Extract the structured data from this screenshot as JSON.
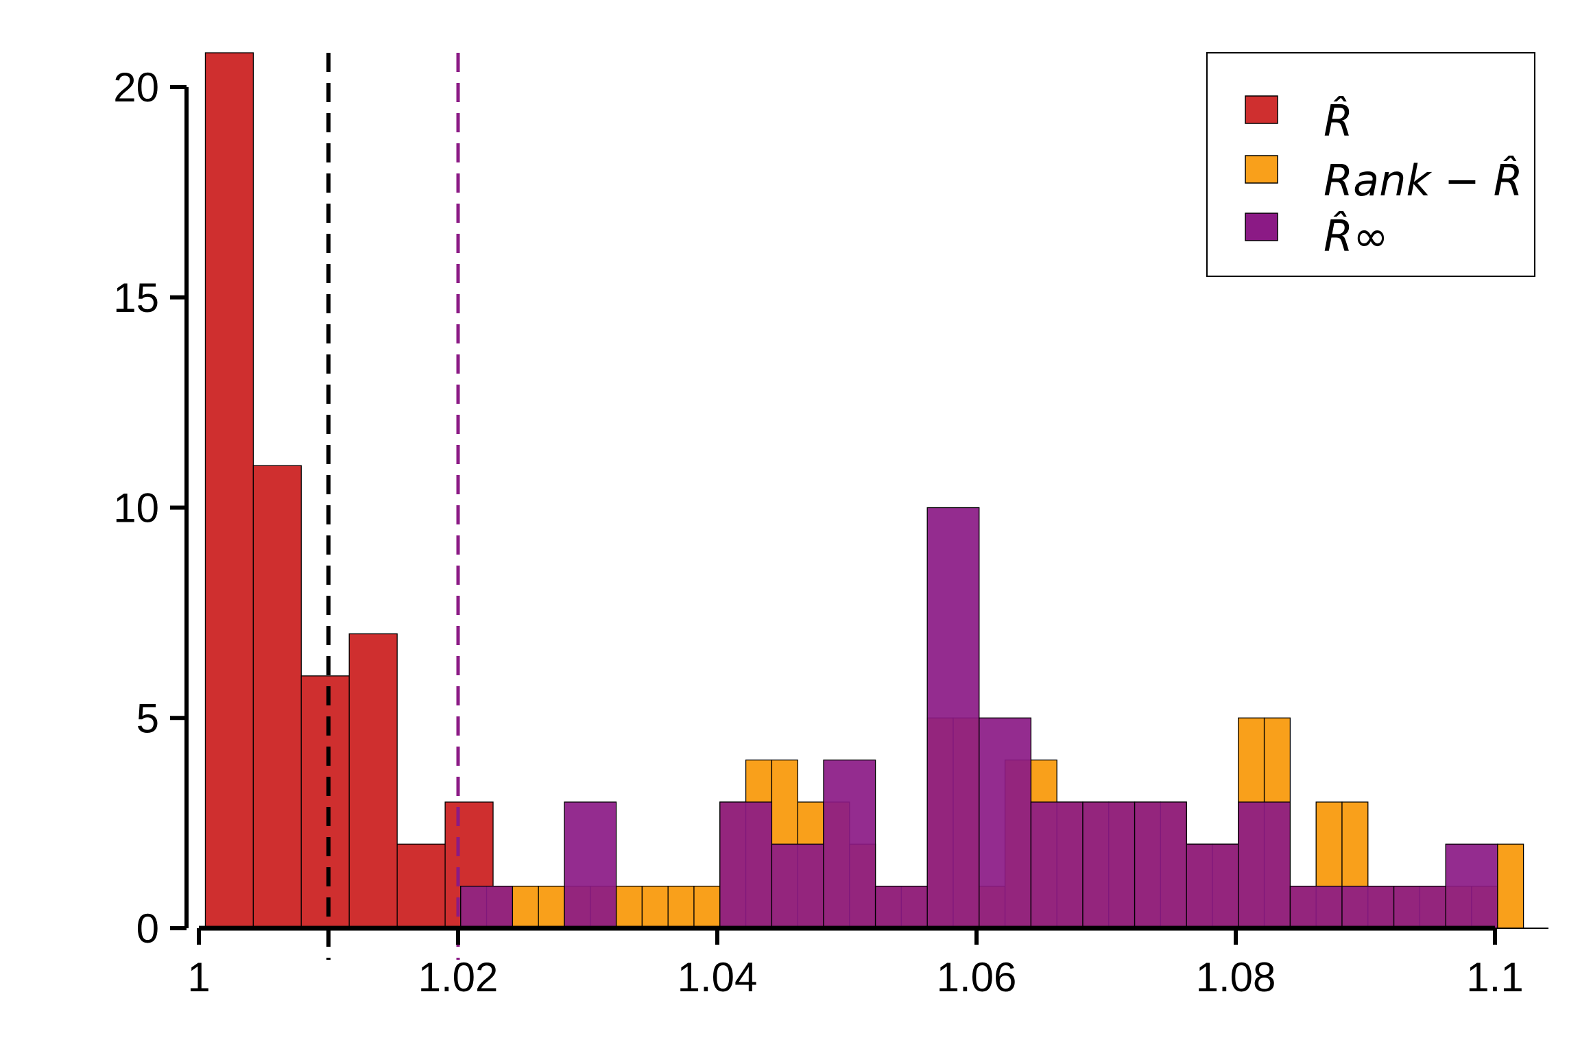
{
  "chart_data": {
    "type": "bar",
    "title": "",
    "xlabel": "",
    "ylabel": "",
    "xlim": [
      1.0,
      1.1
    ],
    "ylim": [
      0,
      20
    ],
    "x_ticks": [
      1.0,
      1.02,
      1.04,
      1.06,
      1.08,
      1.1
    ],
    "x_tick_labels": [
      "1",
      "1.02",
      "1.04",
      "1.06",
      "1.08",
      "1.1"
    ],
    "y_ticks": [
      0,
      5,
      10,
      15,
      20
    ],
    "y_tick_labels": [
      "0",
      "5",
      "10",
      "15",
      "20"
    ],
    "grid": false,
    "legend_position": "top-right",
    "series": [
      {
        "name": "R̂",
        "color": "#cf2f2f",
        "bin_width": 0.0037,
        "bins_start": [
          1.0005,
          1.0042,
          1.0079,
          1.0116,
          1.0153,
          1.019
        ],
        "values": [
          21,
          11,
          6,
          7,
          2,
          3
        ]
      },
      {
        "name": "Rank − R̂",
        "color": "#f9a01b",
        "bin_width": 0.002,
        "bins_start": [
          1.0202,
          1.0222,
          1.0242,
          1.0262,
          1.0282,
          1.0302,
          1.0322,
          1.0342,
          1.0362,
          1.0382,
          1.0402,
          1.0422,
          1.0442,
          1.0462,
          1.0482,
          1.0502,
          1.0522,
          1.0542,
          1.0562,
          1.0582,
          1.0602,
          1.0622,
          1.0642,
          1.0662,
          1.0682,
          1.0702,
          1.0722,
          1.0742,
          1.0762,
          1.0782,
          1.0802,
          1.0822,
          1.0842,
          1.0862,
          1.0882,
          1.0902,
          1.0922,
          1.0942,
          1.0962,
          1.0982,
          1.1002
        ],
        "values": [
          1,
          1,
          1,
          1,
          1,
          1,
          1,
          1,
          1,
          1,
          3,
          4,
          4,
          3,
          3,
          2,
          1,
          1,
          5,
          5,
          1,
          4,
          4,
          3,
          3,
          3,
          3,
          3,
          2,
          2,
          5,
          5,
          1,
          3,
          3,
          1,
          1,
          1,
          1,
          1,
          2
        ]
      },
      {
        "name": "R̂∞",
        "color": "#8b1a85",
        "bin_width": 0.004,
        "bins_start": [
          1.0202,
          1.0282,
          1.0402,
          1.0442,
          1.0482,
          1.0522,
          1.0562,
          1.0602,
          1.0642,
          1.0682,
          1.0722,
          1.0762,
          1.0802,
          1.0842,
          1.0882,
          1.0922,
          1.0962
        ],
        "values": [
          1,
          3,
          3,
          2,
          4,
          1,
          10,
          5,
          3,
          3,
          3,
          2,
          3,
          1,
          1,
          1,
          2
        ]
      }
    ],
    "reference_lines": [
      {
        "x": 1.01,
        "color": "#000000",
        "style": "dashed"
      },
      {
        "x": 1.02,
        "color": "#8b1a85",
        "style": "dashed"
      }
    ]
  },
  "legend": {
    "items": [
      {
        "label": "R̂",
        "color": "#cf2f2f"
      },
      {
        "label": "Rank − R̂",
        "color": "#f9a01b"
      },
      {
        "label": "R̂∞",
        "color": "#8b1a85"
      }
    ]
  }
}
